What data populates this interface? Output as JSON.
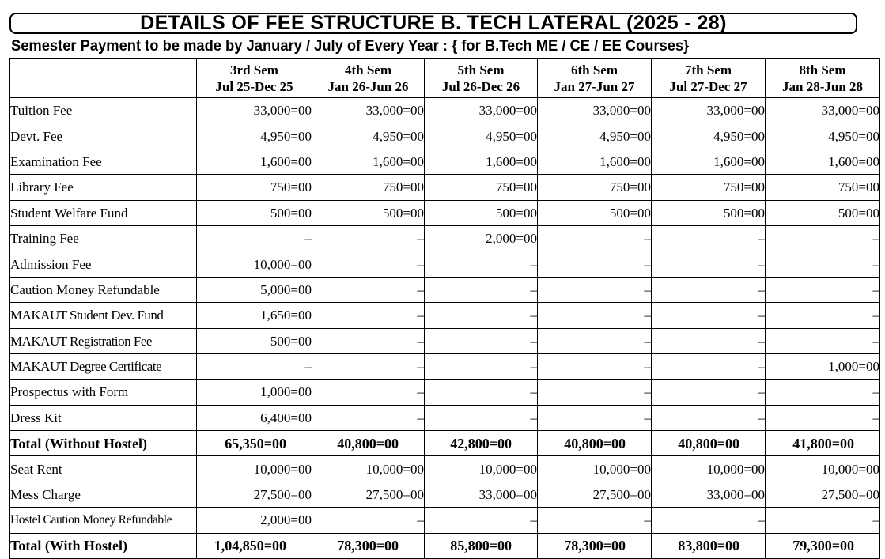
{
  "title": "DETAILS OF FEE STRUCTURE B. TECH LATERAL (2025 - 28)",
  "subtitle": "Semester Payment to be made by January / July of Every Year : { for B.Tech  ME / CE / EE Courses}",
  "columns": [
    {
      "sem": "3rd Sem",
      "period": "Jul 25-Dec 25"
    },
    {
      "sem": "4th Sem",
      "period": "Jan 26-Jun 26"
    },
    {
      "sem": "5th Sem",
      "period": "Jul 26-Dec 26"
    },
    {
      "sem": "6th Sem",
      "period": "Jan 27-Jun 27"
    },
    {
      "sem": "7th Sem",
      "period": "Jul 27-Dec 27"
    },
    {
      "sem": "8th Sem",
      "period": "Jan 28-Jun 28"
    }
  ],
  "rows": [
    {
      "label": "Tuition Fee",
      "values": [
        "33,000=00",
        "33,000=00",
        "33,000=00",
        "33,000=00",
        "33,000=00",
        "33,000=00"
      ]
    },
    {
      "label": "Devt. Fee",
      "values": [
        "4,950=00",
        "4,950=00",
        "4,950=00",
        "4,950=00",
        "4,950=00",
        "4,950=00"
      ]
    },
    {
      "label": "Examination Fee",
      "values": [
        "1,600=00",
        "1,600=00",
        "1,600=00",
        "1,600=00",
        "1,600=00",
        "1,600=00"
      ]
    },
    {
      "label": "Library Fee",
      "values": [
        "750=00",
        "750=00",
        "750=00",
        "750=00",
        "750=00",
        "750=00"
      ]
    },
    {
      "label": "Student Welfare Fund",
      "values": [
        "500=00",
        "500=00",
        "500=00",
        "500=00",
        "500=00",
        "500=00"
      ]
    },
    {
      "label": "Training Fee",
      "values": [
        "–",
        "–",
        "2,000=00",
        "–",
        "–",
        "–"
      ]
    },
    {
      "label": "Admission Fee",
      "values": [
        "10,000=00",
        "–",
        "–",
        "–",
        "–",
        "–"
      ]
    },
    {
      "label": "Caution Money Refundable",
      "values": [
        "5,000=00",
        "–",
        "–",
        "–",
        "–",
        "–"
      ]
    },
    {
      "label": "MAKAUT Student Dev. Fund",
      "values": [
        "1,650=00",
        "–",
        "–",
        "–",
        "–",
        "–"
      ]
    },
    {
      "label": "MAKAUT Registration Fee",
      "values": [
        "500=00",
        "–",
        "–",
        "–",
        "–",
        "–"
      ]
    },
    {
      "label": "MAKAUT Degree Certificate",
      "values": [
        "–",
        "–",
        "–",
        "–",
        "–",
        "1,000=00"
      ]
    },
    {
      "label": "Prospectus with Form",
      "values": [
        "1,000=00",
        "–",
        "–",
        "–",
        "–",
        "–"
      ]
    },
    {
      "label": "Dress Kit",
      "values": [
        "6,400=00",
        "–",
        "–",
        "–",
        "–",
        "–"
      ]
    },
    {
      "label": "Total (Without Hostel)",
      "values": [
        "65,350=00",
        "40,800=00",
        "42,800=00",
        "40,800=00",
        "40,800=00",
        "41,800=00"
      ],
      "total": true
    },
    {
      "label": "Seat Rent",
      "values": [
        "10,000=00",
        "10,000=00",
        "10,000=00",
        "10,000=00",
        "10,000=00",
        "10,000=00"
      ]
    },
    {
      "label": "Mess Charge",
      "values": [
        "27,500=00",
        "27,500=00",
        "33,000=00",
        "27,500=00",
        "33,000=00",
        "27,500=00"
      ]
    },
    {
      "label": "Hostel Caution Money Refundable",
      "values": [
        "2,000=00",
        "–",
        "–",
        "–",
        "–",
        "–"
      ],
      "small": true
    },
    {
      "label": "Total (With Hostel)",
      "values": [
        "1,04,850=00",
        "78,300=00",
        "85,800=00",
        "78,300=00",
        "83,800=00",
        "79,300=00"
      ],
      "total": true
    }
  ]
}
